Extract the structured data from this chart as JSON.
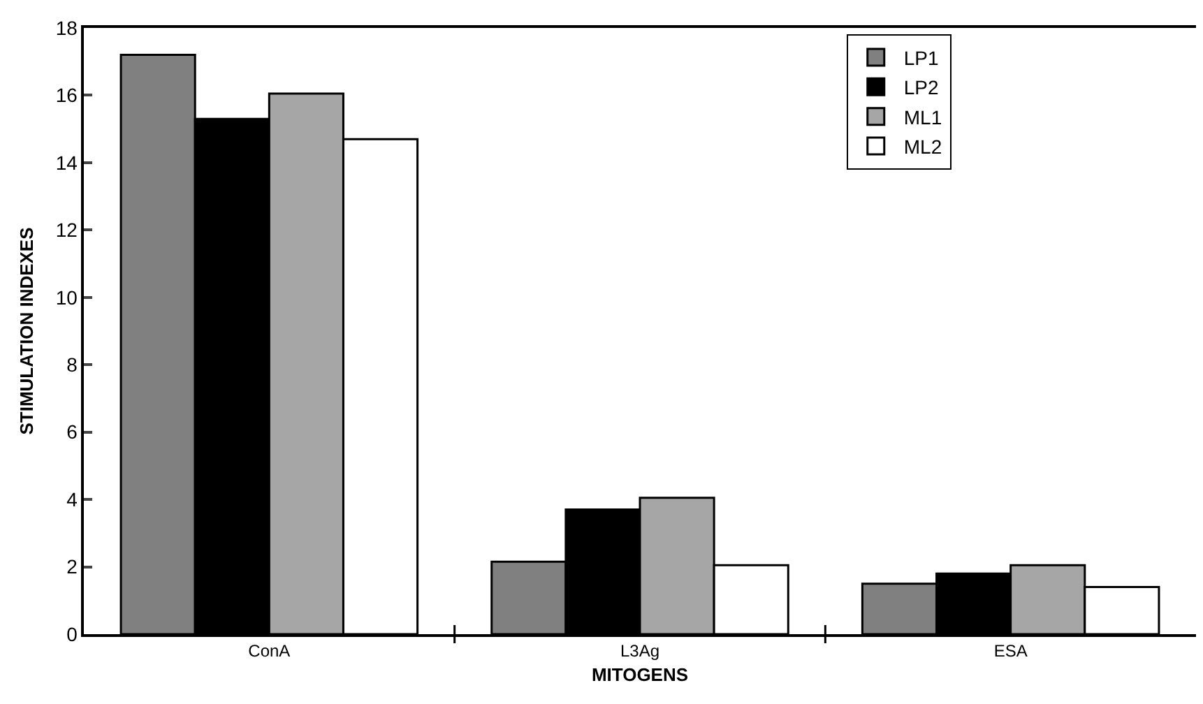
{
  "chart_data": {
    "type": "bar",
    "xlabel": "MITOGENS",
    "ylabel": "STIMULATION INDEXES",
    "categories": [
      "ConA",
      "L3Ag",
      "ESA"
    ],
    "series": [
      {
        "name": "LP1",
        "color": "#808080",
        "values": [
          17.2,
          2.15,
          1.5
        ]
      },
      {
        "name": "LP2",
        "color": "#000000",
        "values": [
          15.3,
          3.7,
          1.8
        ]
      },
      {
        "name": "ML1",
        "color": "#a6a6a6",
        "values": [
          16.05,
          4.05,
          2.05
        ]
      },
      {
        "name": "ML2",
        "color": "#ffffff",
        "values": [
          14.7,
          2.05,
          1.4
        ]
      }
    ],
    "ylim": [
      0,
      18
    ],
    "yticks": [
      0,
      2,
      4,
      6,
      8,
      10,
      12,
      14,
      16,
      18
    ],
    "grid": false,
    "legend": "top right"
  }
}
